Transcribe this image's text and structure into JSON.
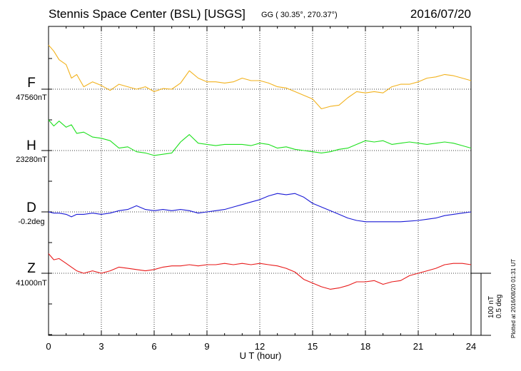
{
  "header": {
    "title": "Stennis Space Center (BSL)  [USGS]",
    "coords": "GG ( 30.35°, 270.37°)",
    "date": "2016/07/20"
  },
  "channels": [
    {
      "name": "F",
      "baseline": "47560nT",
      "color": "#f2b21d"
    },
    {
      "name": "H",
      "baseline": "23280nT",
      "color": "#1ee01e"
    },
    {
      "name": "D",
      "baseline": "-0.2deg",
      "color": "#1a1ad6"
    },
    {
      "name": "Z",
      "baseline": "41000nT",
      "color": "#e81a1a"
    }
  ],
  "scale": {
    "nt": "100 nT",
    "deg": "0.5 deg"
  },
  "plotted": "Plotted at 2016/08/20 01:31  UT",
  "chart_data": {
    "type": "line",
    "title": "Stennis Space Center (BSL)  [USGS]",
    "xlabel": "U T (hour)",
    "xlim": [
      0,
      24
    ],
    "xticks": [
      0,
      3,
      6,
      9,
      12,
      15,
      18,
      21,
      24
    ],
    "grid": true,
    "units": "offset from baseline, nT (D in degrees)",
    "series": [
      {
        "name": "F",
        "baseline": "47560nT",
        "x": [
          0,
          0.3,
          0.6,
          1.0,
          1.3,
          1.6,
          2.0,
          2.5,
          3.0,
          3.5,
          4.0,
          4.5,
          5.0,
          5.5,
          6.0,
          6.5,
          7.0,
          7.5,
          8.0,
          8.5,
          9.0,
          9.5,
          10.0,
          10.5,
          11.0,
          11.5,
          12.0,
          12.5,
          13.0,
          13.5,
          14.0,
          14.5,
          15.0,
          15.5,
          16.0,
          16.5,
          17.0,
          17.5,
          18.0,
          18.5,
          19.0,
          19.5,
          20.0,
          20.5,
          21.0,
          21.5,
          22.0,
          22.5,
          23.0,
          23.5,
          24.0
        ],
        "y": [
          72,
          62,
          48,
          40,
          18,
          24,
          4,
          12,
          6,
          -2,
          8,
          4,
          0,
          4,
          -4,
          1,
          0,
          10,
          30,
          18,
          12,
          12,
          10,
          12,
          18,
          14,
          14,
          10,
          4,
          2,
          -4,
          -10,
          -16,
          -32,
          -28,
          -26,
          -14,
          -4,
          -6,
          -4,
          -6,
          4,
          8,
          8,
          12,
          18,
          20,
          24,
          22,
          18,
          14
        ]
      },
      {
        "name": "H",
        "baseline": "23280nT",
        "x": [
          0,
          0.3,
          0.6,
          1.0,
          1.3,
          1.6,
          2.0,
          2.5,
          3.0,
          3.5,
          4.0,
          4.5,
          5.0,
          5.5,
          6.0,
          6.5,
          7.0,
          7.5,
          8.0,
          8.5,
          9.0,
          9.5,
          10.0,
          10.5,
          11.0,
          11.5,
          12.0,
          12.5,
          13.0,
          13.5,
          14.0,
          14.5,
          15.0,
          15.5,
          16.0,
          16.5,
          17.0,
          17.5,
          18.0,
          18.5,
          19.0,
          19.5,
          20.0,
          20.5,
          21.0,
          21.5,
          22.0,
          22.5,
          23.0,
          23.5,
          24.0
        ],
        "y": [
          50,
          40,
          48,
          38,
          42,
          28,
          30,
          22,
          20,
          16,
          4,
          6,
          -2,
          -4,
          -8,
          -6,
          -4,
          14,
          26,
          12,
          10,
          8,
          10,
          10,
          10,
          8,
          12,
          10,
          4,
          6,
          2,
          0,
          -2,
          -4,
          -2,
          2,
          4,
          10,
          16,
          14,
          16,
          10,
          12,
          14,
          12,
          10,
          12,
          14,
          12,
          8,
          4
        ]
      },
      {
        "name": "D",
        "baseline": "-0.2deg",
        "x": [
          0,
          0.3,
          0.6,
          1.0,
          1.3,
          1.6,
          2.0,
          2.5,
          3.0,
          3.5,
          4.0,
          4.5,
          5.0,
          5.5,
          6.0,
          6.5,
          7.0,
          7.5,
          8.0,
          8.5,
          9.0,
          9.5,
          10.0,
          10.5,
          11.0,
          11.5,
          12.0,
          12.5,
          13.0,
          13.5,
          14.0,
          14.5,
          15.0,
          15.5,
          16.0,
          16.5,
          17.0,
          17.5,
          18.0,
          18.5,
          19.0,
          19.5,
          20.0,
          20.5,
          21.0,
          21.5,
          22.0,
          22.5,
          23.0,
          23.5,
          24.0
        ],
        "y": [
          0,
          -2,
          -2,
          -4,
          -8,
          -4,
          -4,
          -2,
          -4,
          -2,
          2,
          4,
          10,
          4,
          2,
          4,
          2,
          4,
          2,
          -2,
          0,
          2,
          4,
          8,
          12,
          16,
          20,
          26,
          30,
          28,
          30,
          24,
          14,
          8,
          2,
          -4,
          -10,
          -14,
          -16,
          -16,
          -16,
          -16,
          -16,
          -15,
          -14,
          -12,
          -10,
          -6,
          -4,
          -2,
          0
        ]
      },
      {
        "name": "Z",
        "baseline": "41000nT",
        "x": [
          0,
          0.3,
          0.6,
          1.0,
          1.3,
          1.6,
          2.0,
          2.5,
          3.0,
          3.5,
          4.0,
          4.5,
          5.0,
          5.5,
          6.0,
          6.5,
          7.0,
          7.5,
          8.0,
          8.5,
          9.0,
          9.5,
          10.0,
          10.5,
          11.0,
          11.5,
          12.0,
          12.5,
          13.0,
          13.5,
          14.0,
          14.5,
          15.0,
          15.5,
          16.0,
          16.5,
          17.0,
          17.5,
          18.0,
          18.5,
          19.0,
          19.5,
          20.0,
          20.5,
          21.0,
          21.5,
          22.0,
          22.5,
          23.0,
          23.5,
          24.0
        ],
        "y": [
          32,
          22,
          24,
          16,
          10,
          4,
          0,
          4,
          0,
          4,
          10,
          8,
          6,
          4,
          6,
          10,
          12,
          12,
          14,
          12,
          14,
          14,
          16,
          14,
          16,
          14,
          16,
          14,
          12,
          8,
          2,
          -10,
          -16,
          -22,
          -26,
          -24,
          -20,
          -14,
          -14,
          -12,
          -18,
          -14,
          -12,
          -4,
          0,
          4,
          8,
          14,
          16,
          16,
          14
        ]
      }
    ]
  }
}
